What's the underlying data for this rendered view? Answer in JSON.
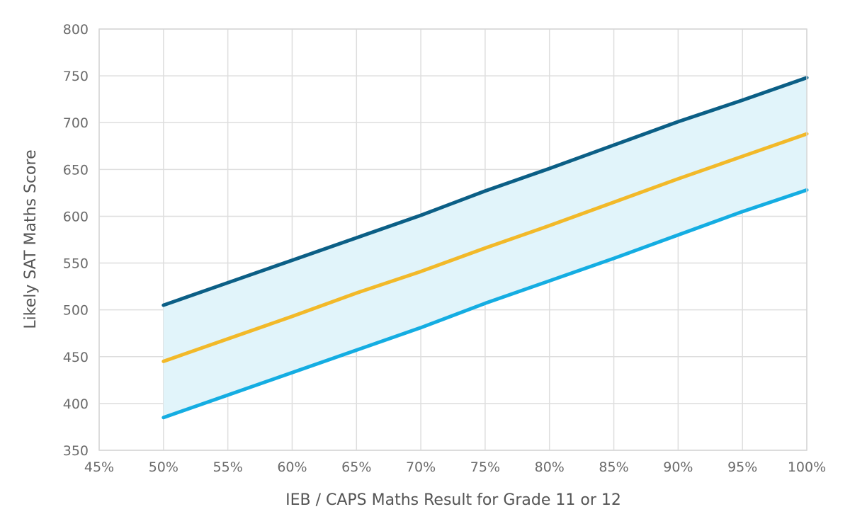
{
  "chart_data": {
    "type": "area",
    "xlabel": "IEB / CAPS Maths Result for Grade 11 or 12",
    "ylabel": "Likely SAT Maths Score",
    "xlim": [
      45,
      100
    ],
    "ylim": [
      350,
      800
    ],
    "x_ticks": [
      45,
      50,
      55,
      60,
      65,
      70,
      75,
      80,
      85,
      90,
      95,
      100
    ],
    "x_tick_labels": [
      "45%",
      "50%",
      "55%",
      "60%",
      "65%",
      "70%",
      "75%",
      "80%",
      "85%",
      "90%",
      "95%",
      "100%"
    ],
    "y_ticks": [
      350,
      400,
      450,
      500,
      550,
      600,
      650,
      700,
      750,
      800
    ],
    "y_tick_labels": [
      "350",
      "400",
      "450",
      "500",
      "550",
      "600",
      "650",
      "700",
      "750",
      "800"
    ],
    "grid": true,
    "legend": "none",
    "x": [
      50,
      55,
      60,
      65,
      70,
      75,
      80,
      85,
      90,
      95,
      100
    ],
    "series": [
      {
        "key": "upper",
        "color": "#0b5f86",
        "values": [
          505,
          529,
          553,
          577,
          601,
          627,
          651,
          676,
          701,
          724,
          748
        ]
      },
      {
        "key": "middle",
        "color": "#f2b929",
        "values": [
          445,
          469,
          493,
          518,
          541,
          566,
          590,
          615,
          640,
          664,
          688
        ]
      },
      {
        "key": "lower",
        "color": "#14ade2",
        "values": [
          385,
          409,
          433,
          457,
          481,
          507,
          531,
          555,
          580,
          605,
          628
        ]
      }
    ],
    "band": {
      "between": [
        "lower",
        "upper"
      ],
      "color": "#e1f4fa"
    }
  }
}
